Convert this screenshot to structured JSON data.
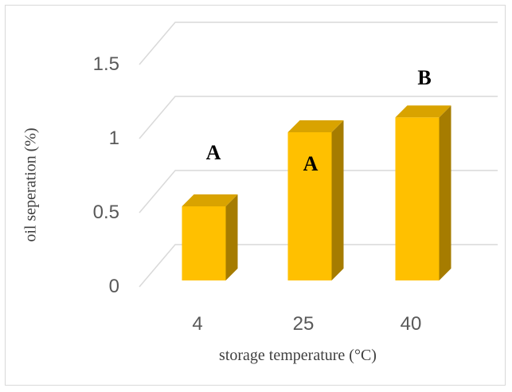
{
  "chart_data": {
    "type": "bar",
    "title": "",
    "xlabel": "storage temperature (°C)",
    "ylabel": "oil seperation (%)",
    "categories": [
      "4",
      "25",
      "40"
    ],
    "values": [
      0.5,
      1.0,
      1.1
    ],
    "group_letters": [
      "A",
      "A",
      "B"
    ],
    "y_ticks": [
      "0",
      "0.5",
      "1",
      "1.5"
    ],
    "ylim": [
      0,
      1.5
    ],
    "grid": true,
    "legend": "none",
    "style": "3d-column",
    "colors": {
      "bar_front": "#FFC000",
      "bar_side": "#A67C00",
      "bar_top": "#D9A300",
      "grid": "#d9d9d9"
    }
  }
}
